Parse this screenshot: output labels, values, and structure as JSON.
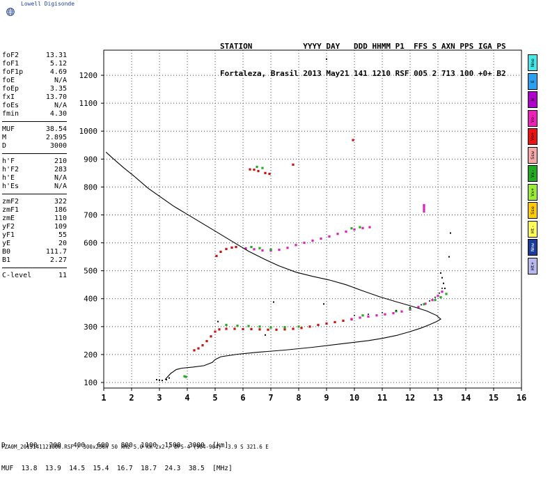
{
  "brand": {
    "name": "Lowell Digisonde",
    "logo_icon": "globe-icon"
  },
  "header": {
    "line1": "STATION           YYYY DAY   DDD HHMM P1  FFS S AXN PPS IGA PS",
    "line2": "Fortaleza, Brasil 2013 May21 141 1210 RSF 005 2 713 100 +0+ B2"
  },
  "params": [
    [
      {
        "label": "foF2",
        "value": "13.31"
      },
      {
        "label": "foF1",
        "value": "5.12"
      },
      {
        "label": "foF1p",
        "value": "4.69"
      },
      {
        "label": "foE",
        "value": "N/A"
      },
      {
        "label": "foEp",
        "value": "3.35"
      },
      {
        "label": "fxI",
        "value": "13.70"
      },
      {
        "label": "foEs",
        "value": "N/A"
      },
      {
        "label": "fmin",
        "value": "4.30"
      }
    ],
    [
      {
        "label": "MUF",
        "value": "38.54"
      },
      {
        "label": "M",
        "value": "2.895"
      },
      {
        "label": "D",
        "value": "3000"
      }
    ],
    [
      {
        "label": "h'F",
        "value": "210"
      },
      {
        "label": "h'F2",
        "value": "283"
      },
      {
        "label": "h'E",
        "value": "N/A"
      },
      {
        "label": "h'Es",
        "value": "N/A"
      }
    ],
    [
      {
        "label": "zmF2",
        "value": "322"
      },
      {
        "label": "zmF1",
        "value": "186"
      },
      {
        "label": "zmE",
        "value": "110"
      },
      {
        "label": "yF2",
        "value": "109"
      },
      {
        "label": "yF1",
        "value": "55"
      },
      {
        "label": "yE",
        "value": "20"
      },
      {
        "label": "B0",
        "value": "111.7"
      },
      {
        "label": "B1",
        "value": "2.27"
      }
    ],
    [
      {
        "label": "C-level",
        "value": "11"
      }
    ]
  ],
  "legend": [
    {
      "label": "Nne",
      "color": "#44e8e8"
    },
    {
      "label": "E",
      "color": "#2aa0ee"
    },
    {
      "label": "W",
      "color": "#b000cc"
    },
    {
      "label": "Vo-",
      "color": "#ee22bb"
    },
    {
      "label": "Vo+",
      "color": "#ee1111"
    },
    {
      "label": "Ssw",
      "color": "#f4a8a8"
    },
    {
      "label": "Vx-",
      "color": "#22aa22"
    },
    {
      "label": "Vx+",
      "color": "#99ee33"
    },
    {
      "label": "Sse",
      "color": "#ffcc00"
    },
    {
      "label": "Ht-",
      "color": "#ffff55"
    },
    {
      "label": "Nnw",
      "color": "#1a3c99"
    },
    {
      "label": "Ht+",
      "color": "#b8b8ee"
    }
  ],
  "footer": {
    "line1": "D     100   200   400   600   800  1000  1500  3000  [km]",
    "line2": "MUF  13.8  13.9  14.5  15.4  16.7  18.7  24.3  38.5  [MHz]",
    "file": "FZA0M_2013141121000.RSF / 300x256h 50 kHz 5.0 km 2x2 / DPS-4 (904-904)  3.9 S 321.6 E"
  },
  "chart_data": {
    "type": "scatter",
    "title": "",
    "xlabel": "",
    "ylabel": "",
    "xlim": [
      1,
      16
    ],
    "ylim": [
      80,
      1290
    ],
    "grid": true,
    "xticks": [
      1,
      2,
      3,
      4,
      5,
      6,
      7,
      8,
      9,
      10,
      11,
      12,
      13,
      14,
      15,
      16
    ],
    "yticks": [
      100,
      200,
      300,
      400,
      500,
      600,
      700,
      800,
      900,
      1000,
      1100,
      1200
    ],
    "series": [
      {
        "kind": "echo",
        "color": "#cc1111",
        "points": [
          [
            4.25,
            215
          ],
          [
            4.4,
            222
          ],
          [
            4.55,
            233
          ],
          [
            4.7,
            248
          ],
          [
            4.85,
            265
          ],
          [
            5.0,
            282
          ],
          [
            5.15,
            290
          ],
          [
            5.4,
            292
          ],
          [
            5.7,
            292
          ],
          [
            6.0,
            291
          ],
          [
            6.3,
            291
          ],
          [
            6.6,
            290
          ],
          [
            6.9,
            289
          ],
          [
            7.2,
            289
          ],
          [
            7.5,
            290
          ],
          [
            7.8,
            292
          ],
          [
            8.1,
            295
          ],
          [
            8.4,
            300
          ],
          [
            8.7,
            306
          ],
          [
            9.0,
            311
          ],
          [
            9.3,
            316
          ],
          [
            9.6,
            321
          ],
          [
            9.9,
            326
          ]
        ]
      },
      {
        "kind": "echo",
        "color": "#dd22bb",
        "points": [
          [
            9.9,
            327
          ],
          [
            10.2,
            332
          ],
          [
            10.5,
            336
          ],
          [
            10.8,
            340
          ],
          [
            11.1,
            344
          ],
          [
            11.4,
            348
          ],
          [
            11.7,
            354
          ],
          [
            12.0,
            361
          ],
          [
            12.3,
            370
          ],
          [
            12.55,
            382
          ],
          [
            12.8,
            395
          ],
          [
            13.0,
            410
          ],
          [
            13.15,
            425
          ]
        ]
      },
      {
        "kind": "echo",
        "color": "#22aa22",
        "points": [
          [
            5.4,
            306
          ],
          [
            5.8,
            303
          ],
          [
            6.2,
            302
          ],
          [
            6.6,
            300
          ],
          [
            7.0,
            297
          ],
          [
            7.5,
            298
          ],
          [
            8.0,
            300
          ],
          [
            10.3,
            340
          ],
          [
            11.5,
            355
          ],
          [
            12.0,
            364
          ],
          [
            12.5,
            380
          ],
          [
            12.9,
            395
          ],
          [
            13.1,
            405
          ],
          [
            13.3,
            417
          ]
        ]
      },
      {
        "kind": "echo",
        "color": "#cc1111",
        "points": [
          [
            5.05,
            553
          ],
          [
            5.2,
            568
          ],
          [
            5.4,
            578
          ],
          [
            5.6,
            583
          ],
          [
            5.75,
            585
          ]
        ]
      },
      {
        "kind": "echo",
        "color": "#dd22bb",
        "points": [
          [
            6.1,
            580
          ],
          [
            6.4,
            577
          ],
          [
            6.7,
            573
          ],
          [
            7.0,
            572
          ],
          [
            7.3,
            575
          ],
          [
            7.6,
            582
          ],
          [
            7.9,
            592
          ],
          [
            8.2,
            600
          ],
          [
            8.5,
            608
          ],
          [
            8.8,
            615
          ],
          [
            9.1,
            623
          ],
          [
            9.4,
            632
          ],
          [
            9.7,
            640
          ],
          [
            10.0,
            648
          ],
          [
            10.3,
            653
          ],
          [
            10.55,
            656
          ]
        ]
      },
      {
        "kind": "echo",
        "color": "#22aa22",
        "points": [
          [
            6.3,
            585
          ],
          [
            6.6,
            581
          ],
          [
            7.0,
            576
          ],
          [
            9.9,
            652
          ],
          [
            10.2,
            656
          ]
        ]
      },
      {
        "kind": "echo",
        "color": "#cc1111",
        "points": [
          [
            6.25,
            863
          ],
          [
            6.4,
            862
          ],
          [
            6.55,
            857
          ],
          [
            6.8,
            850
          ],
          [
            6.95,
            847
          ],
          [
            7.8,
            880
          ],
          [
            9.95,
            968
          ]
        ]
      },
      {
        "kind": "echo",
        "color": "#dd22bb",
        "points": [
          [
            12.5,
            735
          ],
          [
            12.5,
            728
          ],
          [
            12.5,
            720
          ],
          [
            12.5,
            712
          ]
        ]
      },
      {
        "kind": "echo",
        "color": "#22aa22",
        "points": [
          [
            6.5,
            872
          ],
          [
            6.7,
            868
          ],
          [
            3.9,
            122
          ],
          [
            3.95,
            120
          ]
        ]
      },
      {
        "kind": "echo",
        "color": "#000000",
        "points": [
          [
            2.9,
            110
          ],
          [
            3.0,
            108
          ],
          [
            3.1,
            107
          ],
          [
            3.25,
            110
          ],
          [
            3.35,
            116
          ],
          [
            5.1,
            318
          ],
          [
            13.25,
            437
          ],
          [
            13.2,
            455
          ],
          [
            13.15,
            475
          ],
          [
            13.1,
            492
          ],
          [
            13.4,
            550
          ],
          [
            13.45,
            635
          ],
          [
            9.0,
            1258
          ],
          [
            6.8,
            270
          ],
          [
            7.1,
            388
          ],
          [
            8.9,
            381
          ]
        ]
      },
      {
        "kind": "echo-dotted",
        "color": "#000000",
        "points": [
          [
            10.0,
            340
          ],
          [
            10.5,
            344
          ],
          [
            11.0,
            350
          ],
          [
            11.5,
            358
          ],
          [
            12.0,
            368
          ],
          [
            12.4,
            378
          ],
          [
            12.7,
            392
          ],
          [
            12.9,
            405
          ],
          [
            13.05,
            420
          ],
          [
            13.15,
            437
          ],
          [
            13.2,
            455
          ]
        ]
      },
      {
        "kind": "profile",
        "color": "#000000",
        "points": [
          [
            3.2,
            110
          ],
          [
            3.4,
            132
          ],
          [
            3.6,
            146
          ],
          [
            3.8,
            151
          ],
          [
            4.2,
            155
          ],
          [
            4.6,
            160
          ],
          [
            4.9,
            172
          ],
          [
            5.0,
            182
          ],
          [
            5.2,
            192
          ],
          [
            5.8,
            201
          ],
          [
            6.5,
            208
          ],
          [
            7.5,
            216
          ],
          [
            8.5,
            226
          ],
          [
            9.5,
            238
          ],
          [
            10.5,
            250
          ],
          [
            11.0,
            258
          ],
          [
            11.5,
            268
          ],
          [
            12.0,
            282
          ],
          [
            12.4,
            295
          ],
          [
            12.7,
            307
          ],
          [
            12.95,
            318
          ],
          [
            13.1,
            327
          ],
          [
            12.95,
            340
          ],
          [
            12.6,
            356
          ],
          [
            12.1,
            372
          ],
          [
            11.5,
            389
          ],
          [
            10.9,
            407
          ],
          [
            10.3,
            428
          ],
          [
            9.7,
            450
          ],
          [
            9.1,
            467
          ],
          [
            8.5,
            480
          ],
          [
            7.9,
            495
          ],
          [
            7.3,
            517
          ],
          [
            6.8,
            540
          ],
          [
            6.2,
            570
          ],
          [
            5.5,
            612
          ],
          [
            5.0,
            642
          ],
          [
            4.5,
            672
          ],
          [
            4.0,
            702
          ],
          [
            3.5,
            732
          ],
          [
            3.1,
            760
          ],
          [
            2.6,
            795
          ],
          [
            2.1,
            838
          ],
          [
            1.7,
            870
          ],
          [
            1.3,
            905
          ],
          [
            1.08,
            925
          ]
        ]
      }
    ]
  }
}
